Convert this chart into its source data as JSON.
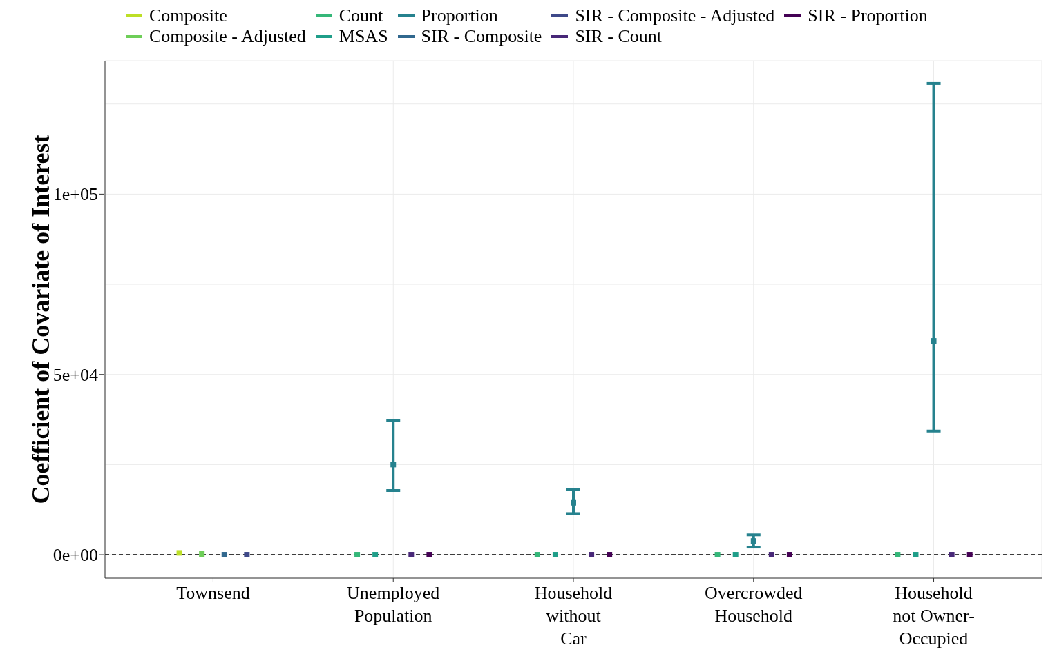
{
  "chart_data": {
    "type": "scatter",
    "ylabel": "Coefficient of Covariate of Interest",
    "categories": [
      "Townsend",
      "Unemployed Population",
      "Household without Car",
      "Overcrowded Household",
      "Household not Owner-Occupied"
    ],
    "series": [
      {
        "name": "Composite",
        "color": "#bddf26",
        "values": [
          500,
          null,
          null,
          null,
          null
        ]
      },
      {
        "name": "Composite - Adjusted",
        "color": "#6ece58",
        "values": [
          200,
          null,
          null,
          null,
          null
        ]
      },
      {
        "name": "Count",
        "color": "#35b779",
        "values": [
          null,
          0,
          0,
          0,
          0
        ]
      },
      {
        "name": "MSAS",
        "color": "#1f9e89",
        "values": [
          null,
          0,
          0,
          0,
          0
        ]
      },
      {
        "name": "Proportion",
        "color": "#26828e",
        "values": [
          null,
          25000,
          14400,
          3800,
          59300
        ],
        "errors": [
          null,
          [
            17800,
            37300
          ],
          [
            11400,
            18000
          ],
          [
            2100,
            5500
          ],
          [
            34300,
            130700
          ]
        ]
      },
      {
        "name": "SIR - Composite",
        "color": "#31688e",
        "values": [
          0,
          null,
          null,
          null,
          null
        ]
      },
      {
        "name": "SIR - Composite - Adjusted",
        "color": "#3e4989",
        "values": [
          0,
          null,
          null,
          null,
          null
        ]
      },
      {
        "name": "SIR - Count",
        "color": "#482878",
        "values": [
          null,
          0,
          0,
          0,
          0
        ]
      },
      {
        "name": "SIR - Proportion",
        "color": "#440154",
        "values": [
          null,
          0,
          0,
          0,
          0
        ]
      }
    ],
    "ylim": [
      -6500,
      137000
    ],
    "yticks": [
      {
        "value": 0,
        "label": "0e+00"
      },
      {
        "value": 25000,
        "label": null
      },
      {
        "value": 50000,
        "label": "5e+04"
      },
      {
        "value": 75000,
        "label": null
      },
      {
        "value": 100000,
        "label": "1e+05"
      },
      {
        "value": 125000,
        "label": null
      }
    ],
    "ref_lines": [
      {
        "axis": "y",
        "value": 0,
        "line_style": "dashed",
        "color": "#000000"
      }
    ],
    "grid": true,
    "legend": "top",
    "marker": "square"
  }
}
